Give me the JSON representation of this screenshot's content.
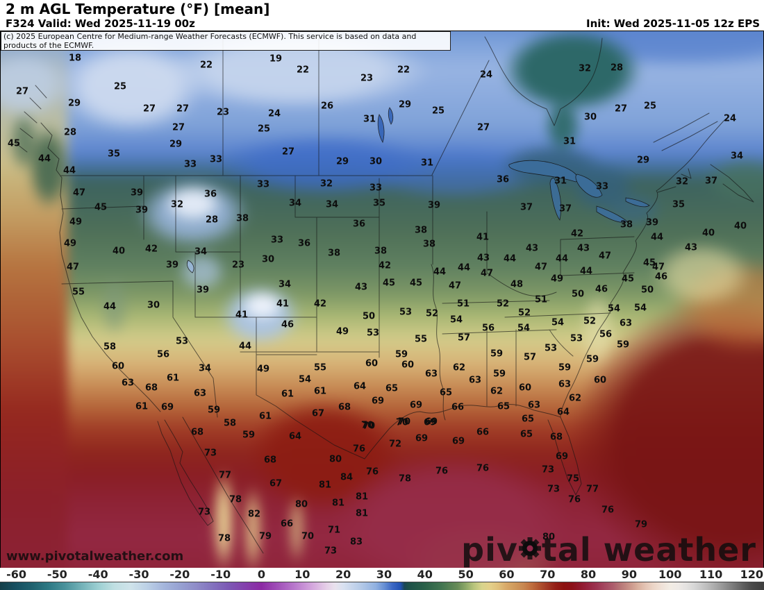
{
  "header": {
    "title": "2 m AGL Temperature (°F) [mean]",
    "forecast_label": "F324 Valid: Wed 2025-11-19 00z",
    "init_label": "Init: Wed 2025-11-05 12z EPS"
  },
  "copyright_notice": "(c) 2025 European Centre for Medium-range Weather Forecasts (ECMWF). This service is based on data and products of the ECMWF.",
  "watermarks": {
    "site_url": "www.pivotalweather.com",
    "brand_prefix": "piv",
    "brand_suffix": "tal weather"
  },
  "colorbar": {
    "unit": "°F",
    "domain": [
      -64,
      123
    ],
    "ticks": [
      -60,
      -50,
      -40,
      -30,
      -20,
      -10,
      0,
      10,
      20,
      30,
      40,
      50,
      60,
      70,
      80,
      90,
      100,
      110,
      120
    ],
    "stops": [
      [
        -64,
        "#143e48"
      ],
      [
        -60,
        "#175061"
      ],
      [
        -56,
        "#20626f"
      ],
      [
        -52,
        "#2f7a85"
      ],
      [
        -48,
        "#4b939c"
      ],
      [
        -44,
        "#74b2b8"
      ],
      [
        -40,
        "#9ccfd2"
      ],
      [
        -36,
        "#c0dfe2"
      ],
      [
        -32,
        "#cfe3ea"
      ],
      [
        -28,
        "#bcd0e6"
      ],
      [
        -24,
        "#a5b6dc"
      ],
      [
        -20,
        "#97a2d2"
      ],
      [
        -16,
        "#8f8cc8"
      ],
      [
        -12,
        "#8372be"
      ],
      [
        -8,
        "#7c58b4"
      ],
      [
        -4,
        "#8440ac"
      ],
      [
        0,
        "#8c2aa4"
      ],
      [
        4,
        "#a050b8"
      ],
      [
        8,
        "#b878cc"
      ],
      [
        12,
        "#d2a2dc"
      ],
      [
        16,
        "#e6d0e8"
      ],
      [
        18,
        "#e9e2ee"
      ],
      [
        20,
        "#d9e1f0"
      ],
      [
        24,
        "#b8cce8"
      ],
      [
        28,
        "#90b0e0"
      ],
      [
        30,
        "#6890d4"
      ],
      [
        32,
        "#3c68c4"
      ],
      [
        34,
        "#2251b2"
      ],
      [
        35,
        "#1a4653"
      ],
      [
        36,
        "#1d5048"
      ],
      [
        40,
        "#2a6048"
      ],
      [
        44,
        "#417450"
      ],
      [
        48,
        "#688c58"
      ],
      [
        50,
        "#8ca868"
      ],
      [
        52,
        "#b8c47c"
      ],
      [
        54,
        "#d8d48c"
      ],
      [
        56,
        "#e4d08a"
      ],
      [
        58,
        "#e0c07c"
      ],
      [
        60,
        "#d8a868"
      ],
      [
        62,
        "#d09a5c"
      ],
      [
        64,
        "#c88852"
      ],
      [
        66,
        "#c07040"
      ],
      [
        68,
        "#b05430"
      ],
      [
        70,
        "#a03824"
      ],
      [
        72,
        "#941f16"
      ],
      [
        74,
        "#8c1210"
      ],
      [
        76,
        "#8c1018"
      ],
      [
        78,
        "#90182c"
      ],
      [
        80,
        "#962440"
      ],
      [
        82,
        "#9c3350"
      ],
      [
        84,
        "#a44860"
      ],
      [
        86,
        "#ac5c6c"
      ],
      [
        88,
        "#b87878"
      ],
      [
        90,
        "#c89288"
      ],
      [
        92,
        "#d8ae9c"
      ],
      [
        94,
        "#e4c4b4"
      ],
      [
        96,
        "#ecd6c8"
      ],
      [
        98,
        "#f0e2d8"
      ],
      [
        100,
        "#f2ece4"
      ],
      [
        102,
        "#eeeae6"
      ],
      [
        104,
        "#e4e2e0"
      ],
      [
        106,
        "#d6d6d6"
      ],
      [
        108,
        "#c6c6c6"
      ],
      [
        110,
        "#b4b4b4"
      ],
      [
        112,
        "#a0a0a0"
      ],
      [
        114,
        "#8a8a8a"
      ],
      [
        116,
        "#747474"
      ],
      [
        118,
        "#5e5e5e"
      ],
      [
        120,
        "#4a4a4a"
      ],
      [
        123,
        "#3e3e3e"
      ]
    ]
  },
  "map": {
    "temperature_labels": [
      [
        18,
        107,
        83
      ],
      [
        22,
        296,
        93
      ],
      [
        19,
        396,
        84
      ],
      [
        22,
        435,
        100
      ],
      [
        23,
        527,
        112
      ],
      [
        22,
        580,
        100
      ],
      [
        24,
        699,
        107
      ],
      [
        32,
        841,
        98
      ],
      [
        28,
        887,
        97
      ],
      [
        25,
        172,
        124
      ],
      [
        27,
        31,
        131
      ],
      [
        29,
        106,
        148
      ],
      [
        27,
        214,
        156
      ],
      [
        27,
        262,
        156
      ],
      [
        23,
        320,
        161
      ],
      [
        26,
        470,
        152
      ],
      [
        29,
        582,
        150
      ],
      [
        25,
        630,
        159
      ],
      [
        24,
        394,
        163
      ],
      [
        27,
        893,
        156
      ],
      [
        25,
        935,
        152
      ],
      [
        24,
        1050,
        170
      ],
      [
        27,
        256,
        183
      ],
      [
        28,
        100,
        190
      ],
      [
        25,
        379,
        185
      ],
      [
        31,
        531,
        171
      ],
      [
        27,
        695,
        183
      ],
      [
        30,
        849,
        168
      ],
      [
        29,
        252,
        207
      ],
      [
        45,
        19,
        206
      ],
      [
        35,
        163,
        221
      ],
      [
        44,
        63,
        228
      ],
      [
        33,
        273,
        236
      ],
      [
        33,
        310,
        229
      ],
      [
        31,
        819,
        203
      ],
      [
        44,
        99,
        245
      ],
      [
        27,
        414,
        218
      ],
      [
        29,
        492,
        232
      ],
      [
        30,
        540,
        232
      ],
      [
        31,
        614,
        234
      ],
      [
        29,
        925,
        230
      ],
      [
        34,
        1060,
        224
      ],
      [
        33,
        378,
        265
      ],
      [
        32,
        469,
        264
      ],
      [
        33,
        540,
        270
      ],
      [
        36,
        723,
        258
      ],
      [
        31,
        806,
        260
      ],
      [
        33,
        866,
        268
      ],
      [
        32,
        981,
        261
      ],
      [
        37,
        1023,
        260
      ],
      [
        47,
        113,
        277
      ],
      [
        39,
        196,
        277
      ],
      [
        36,
        302,
        279
      ],
      [
        32,
        254,
        294
      ],
      [
        34,
        424,
        292
      ],
      [
        34,
        477,
        294
      ],
      [
        35,
        545,
        292
      ],
      [
        39,
        624,
        295
      ],
      [
        35,
        976,
        294
      ],
      [
        45,
        144,
        298
      ],
      [
        39,
        203,
        302
      ],
      [
        37,
        757,
        298
      ],
      [
        37,
        813,
        300
      ],
      [
        28,
        304,
        316
      ],
      [
        38,
        348,
        314
      ],
      [
        49,
        108,
        319
      ],
      [
        36,
        516,
        322
      ],
      [
        38,
        605,
        331
      ],
      [
        38,
        901,
        323
      ],
      [
        39,
        938,
        320
      ],
      [
        40,
        1065,
        325
      ],
      [
        49,
        100,
        350
      ],
      [
        33,
        398,
        345
      ],
      [
        36,
        437,
        350
      ],
      [
        38,
        617,
        351
      ],
      [
        41,
        694,
        341
      ],
      [
        42,
        830,
        336
      ],
      [
        44,
        945,
        341
      ],
      [
        40,
        1019,
        335
      ],
      [
        40,
        170,
        361
      ],
      [
        42,
        217,
        358
      ],
      [
        34,
        288,
        362
      ],
      [
        38,
        480,
        364
      ],
      [
        38,
        547,
        361
      ],
      [
        43,
        765,
        357
      ],
      [
        43,
        839,
        357
      ],
      [
        43,
        994,
        356
      ],
      [
        30,
        385,
        373
      ],
      [
        23,
        342,
        381
      ],
      [
        43,
        695,
        371
      ],
      [
        44,
        733,
        372
      ],
      [
        44,
        808,
        372
      ],
      [
        47,
        870,
        368
      ],
      [
        47,
        104,
        384
      ],
      [
        39,
        247,
        381
      ],
      [
        42,
        553,
        382
      ],
      [
        44,
        632,
        391
      ],
      [
        44,
        667,
        385
      ],
      [
        47,
        700,
        393
      ],
      [
        45,
        934,
        378
      ],
      [
        47,
        947,
        384
      ],
      [
        47,
        778,
        384
      ],
      [
        44,
        843,
        390
      ],
      [
        55,
        112,
        420
      ],
      [
        39,
        291,
        417
      ],
      [
        34,
        409,
        409
      ],
      [
        45,
        559,
        407
      ],
      [
        45,
        598,
        407
      ],
      [
        43,
        519,
        413
      ],
      [
        47,
        654,
        411
      ],
      [
        49,
        801,
        401
      ],
      [
        45,
        903,
        401
      ],
      [
        46,
        951,
        398
      ],
      [
        48,
        743,
        409
      ],
      [
        46,
        865,
        416
      ],
      [
        50,
        831,
        423
      ],
      [
        50,
        931,
        417
      ],
      [
        44,
        157,
        441
      ],
      [
        30,
        220,
        439
      ],
      [
        41,
        347,
        453
      ],
      [
        41,
        406,
        437
      ],
      [
        42,
        460,
        437
      ],
      [
        51,
        666,
        437
      ],
      [
        52,
        723,
        437
      ],
      [
        51,
        778,
        431
      ],
      [
        50,
        530,
        455
      ],
      [
        53,
        583,
        449
      ],
      [
        52,
        621,
        451
      ],
      [
        46,
        413,
        467
      ],
      [
        49,
        492,
        477
      ],
      [
        53,
        536,
        479
      ],
      [
        54,
        656,
        460
      ],
      [
        52,
        754,
        450
      ],
      [
        54,
        802,
        464
      ],
      [
        54,
        883,
        444
      ],
      [
        54,
        921,
        443
      ],
      [
        56,
        702,
        472
      ],
      [
        54,
        753,
        472
      ],
      [
        52,
        848,
        462
      ],
      [
        63,
        900,
        465
      ],
      [
        58,
        157,
        499
      ],
      [
        53,
        261,
        491
      ],
      [
        44,
        352,
        498
      ],
      [
        56,
        234,
        510
      ],
      [
        55,
        605,
        488
      ],
      [
        57,
        667,
        486
      ],
      [
        53,
        829,
        487
      ],
      [
        56,
        871,
        481
      ],
      [
        59,
        896,
        496
      ],
      [
        60,
        169,
        527
      ],
      [
        34,
        294,
        530
      ],
      [
        49,
        378,
        531
      ],
      [
        55,
        460,
        529
      ],
      [
        60,
        534,
        523
      ],
      [
        59,
        714,
        509
      ],
      [
        53,
        792,
        501
      ],
      [
        59,
        577,
        510
      ],
      [
        57,
        762,
        514
      ],
      [
        59,
        852,
        517
      ],
      [
        61,
        248,
        544
      ],
      [
        54,
        438,
        546
      ],
      [
        60,
        586,
        525
      ],
      [
        62,
        660,
        529
      ],
      [
        59,
        812,
        529
      ],
      [
        63,
        183,
        551
      ],
      [
        68,
        217,
        558
      ],
      [
        63,
        287,
        566
      ],
      [
        61,
        460,
        563
      ],
      [
        64,
        517,
        556
      ],
      [
        61,
        413,
        567
      ],
      [
        63,
        620,
        538
      ],
      [
        59,
        718,
        538
      ],
      [
        63,
        683,
        547
      ],
      [
        60,
        863,
        547
      ],
      [
        69,
        543,
        577
      ],
      [
        61,
        203,
        585
      ],
      [
        69,
        240,
        586
      ],
      [
        68,
        495,
        586
      ],
      [
        59,
        307,
        590
      ],
      [
        67,
        457,
        595
      ],
      [
        63,
        812,
        553
      ],
      [
        62,
        714,
        563
      ],
      [
        60,
        755,
        558
      ],
      [
        65,
        563,
        559
      ],
      [
        62,
        827,
        573
      ],
      [
        65,
        641,
        565
      ],
      [
        58,
        330,
        609
      ],
      [
        61,
        381,
        599
      ],
      [
        70,
        530,
        613
      ],
      [
        66,
        658,
        586
      ],
      [
        65,
        724,
        585
      ],
      [
        63,
        768,
        583
      ],
      [
        69,
        598,
        583
      ],
      [
        64,
        810,
        593
      ],
      [
        70,
        581,
        607
      ],
      [
        69,
        620,
        607
      ],
      [
        65,
        759,
        603
      ],
      [
        68,
        283,
        622
      ],
      [
        59,
        357,
        626
      ],
      [
        64,
        424,
        628
      ],
      [
        70,
        528,
        612
      ],
      [
        70,
        578,
        608
      ],
      [
        69,
        618,
        608
      ],
      [
        65,
        757,
        625
      ],
      [
        68,
        800,
        629
      ],
      [
        66,
        694,
        622
      ],
      [
        76,
        516,
        646
      ],
      [
        72,
        568,
        639
      ],
      [
        69,
        606,
        631
      ],
      [
        69,
        659,
        635
      ],
      [
        73,
        302,
        652
      ],
      [
        68,
        388,
        662
      ],
      [
        80,
        482,
        661
      ],
      [
        69,
        808,
        657
      ],
      [
        77,
        323,
        684
      ],
      [
        67,
        396,
        696
      ],
      [
        84,
        498,
        687
      ],
      [
        81,
        467,
        698
      ],
      [
        76,
        535,
        679
      ],
      [
        78,
        582,
        689
      ],
      [
        76,
        635,
        678
      ],
      [
        76,
        694,
        674
      ],
      [
        73,
        788,
        676
      ],
      [
        75,
        824,
        689
      ],
      [
        78,
        338,
        719
      ],
      [
        73,
        293,
        737
      ],
      [
        81,
        486,
        724
      ],
      [
        81,
        520,
        715
      ],
      [
        73,
        796,
        704
      ],
      [
        77,
        852,
        704
      ],
      [
        82,
        365,
        740
      ],
      [
        80,
        433,
        726
      ],
      [
        81,
        520,
        739
      ],
      [
        76,
        826,
        719
      ],
      [
        76,
        874,
        734
      ],
      [
        66,
        412,
        754
      ],
      [
        71,
        480,
        763
      ],
      [
        79,
        381,
        772
      ],
      [
        78,
        322,
        775
      ],
      [
        70,
        442,
        772
      ],
      [
        83,
        512,
        780
      ],
      [
        79,
        922,
        755
      ],
      [
        73,
        475,
        793
      ],
      [
        80,
        789,
        773
      ]
    ]
  }
}
